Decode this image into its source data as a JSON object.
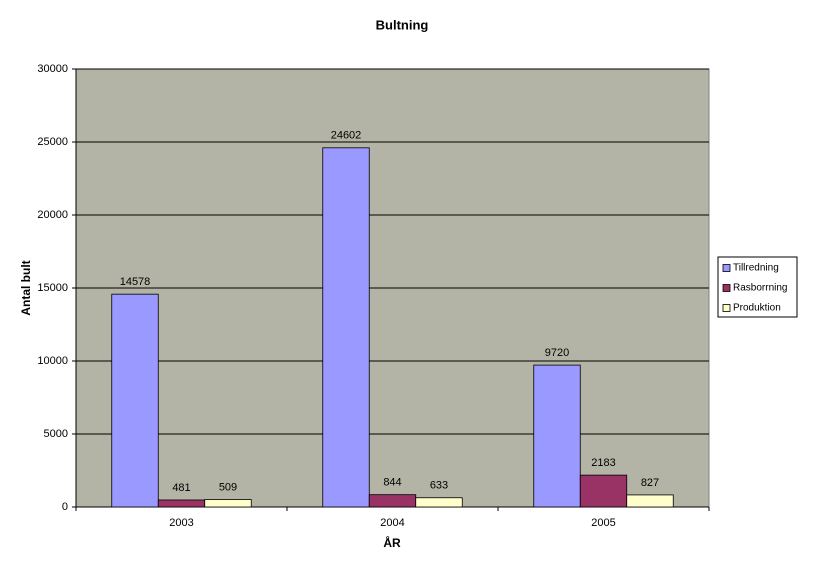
{
  "chart_data": {
    "type": "bar",
    "title": "Bultning",
    "x_label": "ÅR",
    "y_label": "Antal bult",
    "categories": [
      "2003",
      "2004",
      "2005"
    ],
    "series": [
      {
        "name": "Tillredning",
        "color": "#9999ff",
        "values": [
          14578,
          24602,
          9720
        ]
      },
      {
        "name": "Rasborrning",
        "color": "#993366",
        "values": [
          481,
          844,
          2183
        ]
      },
      {
        "name": "Produktion",
        "color": "#ffffcc",
        "values": [
          509,
          633,
          827
        ]
      }
    ],
    "ylim": [
      0,
      30000
    ],
    "yticks": [
      0,
      5000,
      10000,
      15000,
      20000,
      25000,
      30000
    ],
    "grid": true,
    "legend": "right",
    "plot_background": "#b4b4a6"
  }
}
